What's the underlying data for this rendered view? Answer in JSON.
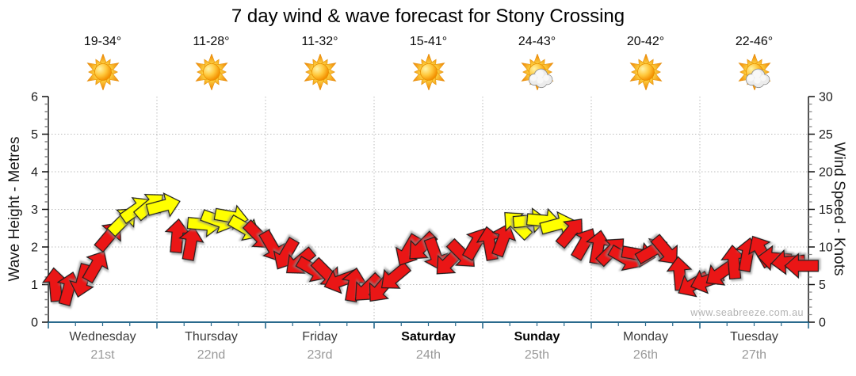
{
  "title": "7 day wind & wave forecast for Stony Crossing",
  "watermark": "www.seabreeze.com.au",
  "chart_data": {
    "type": "wind-arrow-timeseries",
    "title": "7 day wind & wave forecast for Stony Crossing",
    "left_axis": {
      "label": "Wave Height - Metres",
      "min": 0,
      "max": 6,
      "ticks": [
        0,
        1,
        2,
        3,
        4,
        5,
        6
      ]
    },
    "right_axis": {
      "label": "Wind Speed - Knots",
      "min": 0,
      "max": 30,
      "ticks": [
        0,
        5,
        10,
        15,
        20,
        25,
        30
      ]
    },
    "grid": {
      "horizontal_at_metres": [
        1,
        2,
        3,
        4,
        5
      ],
      "vertical_at_day_boundaries": true,
      "style": "dotted"
    },
    "days": [
      {
        "name": "Wednesday",
        "date": "21st",
        "temp": "19-34°",
        "icon": "sunny",
        "weekend": false
      },
      {
        "name": "Thursday",
        "date": "22nd",
        "temp": "11-28°",
        "icon": "sunny",
        "weekend": false
      },
      {
        "name": "Friday",
        "date": "23rd",
        "temp": "11-32°",
        "icon": "sunny",
        "weekend": false
      },
      {
        "name": "Saturday",
        "date": "24th",
        "temp": "15-41°",
        "icon": "sunny",
        "weekend": true
      },
      {
        "name": "Sunday",
        "date": "25th",
        "temp": "24-43°",
        "icon": "partly-cloudy",
        "weekend": true
      },
      {
        "name": "Monday",
        "date": "26th",
        "temp": "20-42°",
        "icon": "sunny",
        "weekend": false
      },
      {
        "name": "Tuesday",
        "date": "27th",
        "temp": "22-46°",
        "icon": "partly-cloudy",
        "weekend": false
      }
    ],
    "colors": {
      "red_arrow": "#ea1414",
      "yellow_arrow": "#ffff00",
      "arrow_outline": "#1a1a1a",
      "axis_line_bottom": "#2a6a8d",
      "axis_line_side": "#1a1a1a",
      "grid": "#bdbdbd",
      "day_text": "#3b3b3b",
      "date_text": "#999999",
      "watermark_text": "#b3b3b3"
    },
    "points_format": "[wind_speed_knots, direction_degrees_clockwise_from_up, color_key r=red y=yellow], 8 points per day, chronological",
    "points": [
      [
        5,
        355,
        "r"
      ],
      [
        4.5,
        15,
        "r"
      ],
      [
        5.5,
        195,
        "r"
      ],
      [
        7.5,
        30,
        "r"
      ],
      [
        11.5,
        40,
        "r"
      ],
      [
        13.5,
        45,
        "y"
      ],
      [
        15,
        55,
        "y"
      ],
      [
        15.5,
        50,
        "y"
      ],
      [
        15.5,
        75,
        "y"
      ],
      [
        11.5,
        5,
        "r"
      ],
      [
        10.5,
        10,
        "r"
      ],
      [
        13,
        95,
        "y"
      ],
      [
        13.5,
        110,
        "y"
      ],
      [
        14,
        100,
        "y"
      ],
      [
        12.5,
        120,
        "y"
      ],
      [
        11.5,
        135,
        "r"
      ],
      [
        10,
        150,
        "r"
      ],
      [
        9,
        210,
        "r"
      ],
      [
        8,
        230,
        "r"
      ],
      [
        7,
        120,
        "r"
      ],
      [
        6.5,
        135,
        "r"
      ],
      [
        5.5,
        250,
        "r"
      ],
      [
        5,
        10,
        "r"
      ],
      [
        4.5,
        225,
        "r"
      ],
      [
        4.5,
        220,
        "r"
      ],
      [
        6,
        230,
        "r"
      ],
      [
        9.5,
        210,
        "r"
      ],
      [
        10,
        225,
        "r"
      ],
      [
        9,
        160,
        "r"
      ],
      [
        8,
        225,
        "r"
      ],
      [
        9,
        135,
        "r"
      ],
      [
        10.5,
        30,
        "r"
      ],
      [
        10.5,
        350,
        "r"
      ],
      [
        11,
        20,
        "r"
      ],
      [
        13,
        315,
        "y"
      ],
      [
        13.5,
        85,
        "y"
      ],
      [
        13.5,
        95,
        "y"
      ],
      [
        13,
        75,
        "y"
      ],
      [
        12,
        40,
        "r"
      ],
      [
        10.5,
        30,
        "r"
      ],
      [
        10,
        10,
        "r"
      ],
      [
        9.5,
        45,
        "r"
      ],
      [
        8.5,
        120,
        "r"
      ],
      [
        9,
        100,
        "r"
      ],
      [
        9.5,
        60,
        "r"
      ],
      [
        9.5,
        140,
        "r"
      ],
      [
        6.5,
        355,
        "r"
      ],
      [
        5,
        240,
        "r"
      ],
      [
        5.5,
        250,
        "r"
      ],
      [
        6.5,
        235,
        "r"
      ],
      [
        8,
        355,
        "r"
      ],
      [
        9,
        10,
        "r"
      ],
      [
        9.5,
        330,
        "r"
      ],
      [
        8.5,
        275,
        "r"
      ],
      [
        8,
        265,
        "r"
      ],
      [
        7.5,
        270,
        "r"
      ]
    ]
  }
}
